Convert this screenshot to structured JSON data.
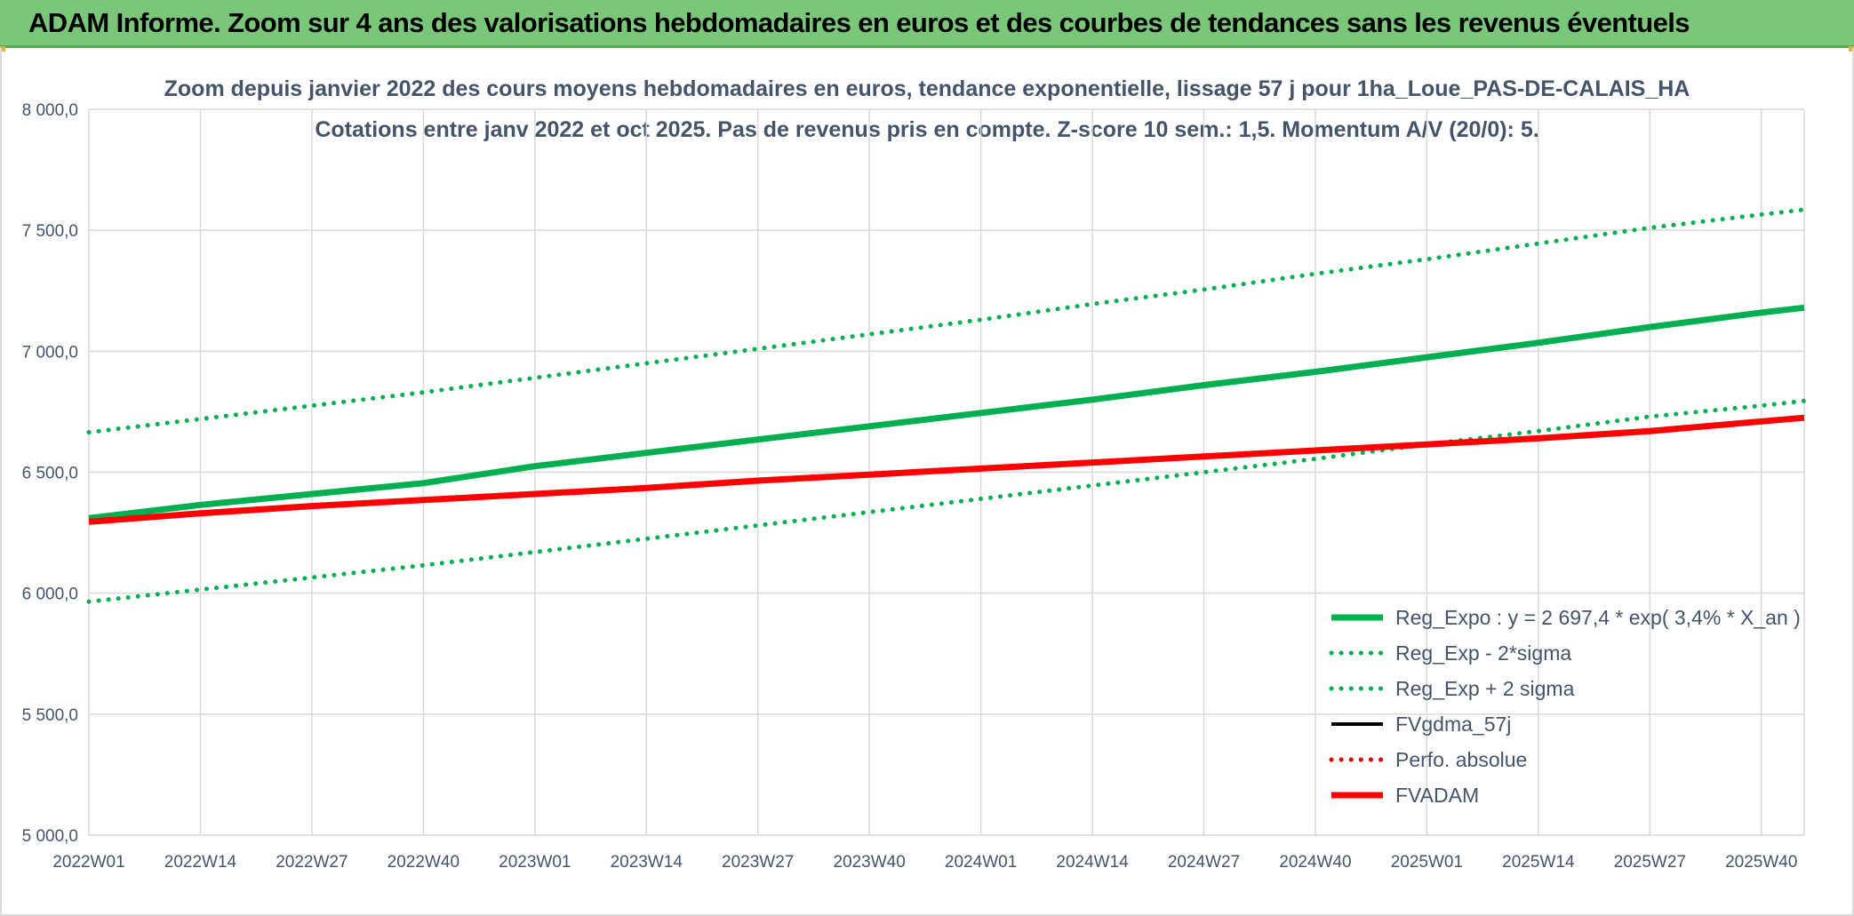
{
  "banner": {
    "title": "ADAM Informe. Zoom sur 4 ans des valorisations hebdomadaires en euros et des courbes de tendances sans les revenus éventuels",
    "color": "#7ac77a"
  },
  "chart_data": {
    "type": "line",
    "title": "Zoom depuis janvier 2022 des cours moyens hebdomadaires en euros, tendance exponentielle, lissage 57 j pour 1ha_Loue_PAS-DE-CALAIS_HA",
    "subtitle": "Cotations entre janv 2022 et oct 2025. Pas de revenus pris en compte. Z-score 10 sem.: 1,5. Momentum A/V (20/0): 5.",
    "xlabel": "",
    "ylabel": "",
    "ylim": [
      5000,
      8000
    ],
    "yticks": [
      "8 000,0",
      "7 500,0",
      "7 000,0",
      "6 500,0",
      "6 000,0",
      "5 500,0",
      "5 000,0"
    ],
    "ytick_values": [
      8000,
      7500,
      7000,
      6500,
      6000,
      5500,
      5000
    ],
    "x_tick_labels": [
      "2022W01",
      "2022W14",
      "2022W27",
      "2022W40",
      "2023W01",
      "2023W14",
      "2023W27",
      "2023W40",
      "2024W01",
      "2024W14",
      "2024W27",
      "2024W40",
      "2025W01",
      "2025W14",
      "2025W27",
      "2025W40"
    ],
    "x_tick_index": [
      0,
      13,
      26,
      39,
      52,
      65,
      78,
      91,
      104,
      117,
      130,
      143,
      156,
      169,
      182,
      195
    ],
    "x_range": [
      0,
      200
    ],
    "grid": true,
    "legend_position": "bottom-right",
    "series": [
      {
        "name": "Reg_Expo : y = 2 697,4 * exp( 3,4% *  X_an )",
        "style": "solid-thick",
        "color": "#00b050",
        "x": [
          0,
          13,
          26,
          39,
          52,
          65,
          78,
          91,
          104,
          117,
          130,
          143,
          156,
          169,
          182,
          195,
          200
        ],
        "values": [
          6310,
          6365,
          6410,
          6455,
          6525,
          6580,
          6635,
          6690,
          6745,
          6800,
          6860,
          6915,
          6975,
          7035,
          7100,
          7160,
          7180
        ]
      },
      {
        "name": "Reg_Exp - 2*sigma",
        "style": "dotted",
        "color": "#00b050",
        "x": [
          0,
          13,
          26,
          39,
          52,
          65,
          78,
          91,
          104,
          117,
          130,
          143,
          156,
          169,
          182,
          195,
          200
        ],
        "values": [
          5965,
          6015,
          6065,
          6115,
          6170,
          6225,
          6280,
          6335,
          6390,
          6445,
          6500,
          6555,
          6615,
          6670,
          6730,
          6775,
          6795
        ]
      },
      {
        "name": "Reg_Exp + 2 sigma",
        "style": "dotted",
        "color": "#00b050",
        "x": [
          0,
          13,
          26,
          39,
          52,
          65,
          78,
          91,
          104,
          117,
          130,
          143,
          156,
          169,
          182,
          195,
          200
        ],
        "values": [
          6665,
          6720,
          6775,
          6830,
          6890,
          6950,
          7010,
          7070,
          7130,
          7195,
          7255,
          7320,
          7380,
          7445,
          7510,
          7565,
          7585
        ]
      },
      {
        "name": "FVgdma_57j",
        "style": "solid",
        "color": "#000000",
        "x": [],
        "values": []
      },
      {
        "name": "Perfo. absolue",
        "style": "dotted",
        "color": "#e00000",
        "x": [],
        "values": []
      },
      {
        "name": "FVADAM",
        "style": "solid-thick",
        "color": "#ff0000",
        "x": [
          0,
          13,
          26,
          39,
          52,
          65,
          78,
          91,
          104,
          117,
          130,
          143,
          156,
          169,
          182,
          195,
          200
        ],
        "values": [
          6295,
          6330,
          6360,
          6385,
          6410,
          6435,
          6465,
          6490,
          6515,
          6540,
          6565,
          6590,
          6615,
          6640,
          6670,
          6710,
          6725
        ]
      }
    ]
  }
}
